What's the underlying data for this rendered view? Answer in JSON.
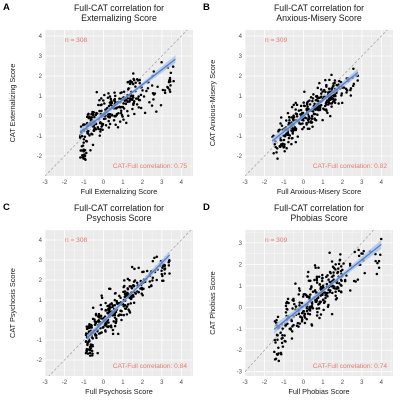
{
  "colors": {
    "plot_background": "#ebebeb",
    "grid": "#ffffff",
    "point": "#000000",
    "fit_line": "#4a7fd4",
    "confidence_band": "#a9bfe3",
    "identity_line": "#9e9e9e",
    "annotation": "#e8786f"
  },
  "chart_data": [
    {
      "type": "scatter",
      "panel": "A",
      "title": "Full-CAT correlation for Externalizing Score",
      "title_lines": [
        "Full-CAT correlation for",
        "Externalizing Score"
      ],
      "xlabel": "Full Externalizing Score",
      "ylabel": "CAT Externalizing Score",
      "xlim": [
        -3,
        4.6
      ],
      "ylim": [
        -3,
        4.3
      ],
      "xticks": [
        -3,
        -2,
        -1,
        0,
        1,
        2,
        3,
        4
      ],
      "yticks": [
        -2,
        -1,
        0,
        1,
        2,
        3,
        4
      ],
      "grid": true,
      "identity_line": true,
      "n_label": "n = 308",
      "correlation_label": "CAT-Full correlation: 0.75",
      "fit": {
        "slope": 0.75,
        "intercept": 0.07,
        "x_range": [
          -1.2,
          3.7
        ]
      },
      "points": {
        "n": 308,
        "clusters": [
          {
            "count": 40,
            "x": [
              -1.2,
              -0.85
            ],
            "y": [
              -2.3,
              -0.4
            ],
            "slope": 0,
            "intercept": 0
          },
          {
            "count": 230,
            "x": [
              -0.85,
              2.0
            ],
            "y_sd": 0.45,
            "slope": 0.6,
            "intercept": 0.1
          },
          {
            "count": 38,
            "x": [
              2.0,
              3.7
            ],
            "y_sd": 0.4,
            "slope": 0.3,
            "intercept": 0.55
          }
        ]
      }
    },
    {
      "type": "scatter",
      "panel": "B",
      "title": "Full-CAT correlation for Anxious-Misery Score",
      "title_lines": [
        "Full-CAT correlation for",
        "Anxious-Misery Score"
      ],
      "xlabel": "Full Anxious-Misery Score",
      "ylabel": "CAT Anxious-Misery Score",
      "xlim": [
        -3,
        4.6
      ],
      "ylim": [
        -3,
        4.3
      ],
      "xticks": [
        -3,
        -2,
        -1,
        0,
        1,
        2,
        3,
        4
      ],
      "yticks": [
        -2,
        -1,
        0,
        1,
        2,
        3,
        4
      ],
      "grid": true,
      "identity_line": true,
      "n_label": "n = 309",
      "correlation_label": "CAT-Full correlation: 0.82",
      "fit": {
        "slope": 0.78,
        "intercept": 0.0,
        "x_range": [
          -1.6,
          2.8
        ]
      },
      "points": {
        "n": 309,
        "clusters": [
          {
            "count": 35,
            "x": [
              -1.6,
              -0.9
            ],
            "y_sd": 0.5,
            "slope": 0.7,
            "intercept": -0.25
          },
          {
            "count": 240,
            "x": [
              -0.9,
              1.7
            ],
            "y_sd": 0.42,
            "slope": 0.78,
            "intercept": 0.0
          },
          {
            "count": 34,
            "x": [
              1.7,
              2.8
            ],
            "y_sd": 0.35,
            "slope": 0.5,
            "intercept": 0.45
          }
        ]
      }
    },
    {
      "type": "scatter",
      "panel": "C",
      "title": "Full-CAT correlation for Psychosis Score",
      "title_lines": [
        "Full-CAT correlation for",
        "Psychosis Score"
      ],
      "xlabel": "Full Psychosis Score",
      "ylabel": "CAT Psychosis Score",
      "xlim": [
        -3,
        4.6
      ],
      "ylim": [
        -2.8,
        4.5
      ],
      "xticks": [
        -3,
        -2,
        -1,
        0,
        1,
        2,
        3,
        4
      ],
      "yticks": [
        -2,
        -1,
        0,
        1,
        2,
        3,
        4
      ],
      "grid": true,
      "identity_line": true,
      "n_label": "n = 308",
      "correlation_label": "CAT-Full correlation: 0.84",
      "fit": {
        "slope": 0.98,
        "intercept": -0.08,
        "x_range": [
          -0.85,
          3.4
        ]
      },
      "points": {
        "n": 308,
        "clusters": [
          {
            "count": 55,
            "x": [
              -0.9,
              -0.55
            ],
            "y": [
              -1.8,
              -0.2
            ],
            "slope": 0,
            "intercept": 0
          },
          {
            "count": 190,
            "x": [
              -0.55,
              1.6
            ],
            "y_sd": 0.45,
            "slope": 0.95,
            "intercept": -0.05
          },
          {
            "count": 63,
            "x": [
              1.6,
              3.4
            ],
            "y_sd": 0.4,
            "slope": 0.75,
            "intercept": 0.3
          }
        ]
      }
    },
    {
      "type": "scatter",
      "panel": "D",
      "title": "Full-CAT correlation for Phobias Score",
      "title_lines": [
        "Full-CAT correlation for",
        "Phobias Score"
      ],
      "xlabel": "Full Phobias Score",
      "ylabel": "CAT Phobias Score",
      "xlim": [
        -3,
        4.6
      ],
      "ylim": [
        -3.2,
        3.6
      ],
      "xticks": [
        -3,
        -2,
        -1,
        0,
        1,
        2,
        3,
        4
      ],
      "yticks": [
        -3,
        -2,
        -1,
        0,
        1,
        2,
        3
      ],
      "grid": true,
      "identity_line": true,
      "n_label": "n = 309",
      "correlation_label": "CAT-Full correlation: 0.74",
      "fit": {
        "slope": 0.72,
        "intercept": 0.05,
        "x_range": [
          -1.5,
          4.0
        ]
      },
      "points": {
        "n": 309,
        "clusters": [
          {
            "count": 35,
            "x": [
              -1.5,
              -0.9
            ],
            "y": [
              -2.5,
              -0.3
            ],
            "slope": 0,
            "intercept": 0
          },
          {
            "count": 245,
            "x": [
              -0.9,
              2.0
            ],
            "y_sd": 0.55,
            "slope": 0.7,
            "intercept": 0.05
          },
          {
            "count": 29,
            "x": [
              2.0,
              4.0
            ],
            "y_sd": 0.45,
            "slope": 0.6,
            "intercept": 0.3
          }
        ]
      }
    }
  ]
}
